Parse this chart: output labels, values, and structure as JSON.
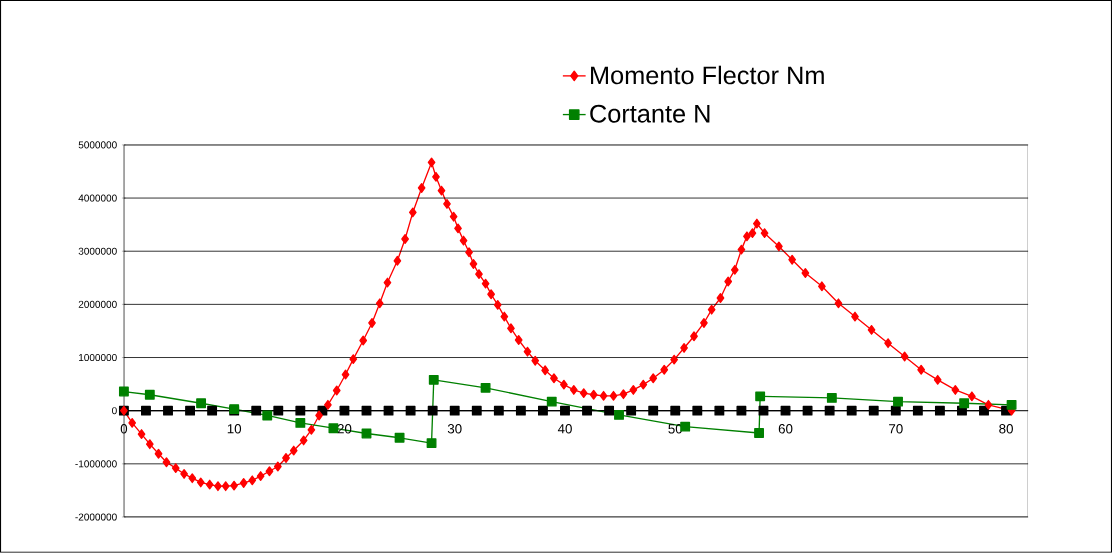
{
  "chart_data": {
    "type": "line",
    "xlim": [
      0,
      82
    ],
    "ylim": [
      -2000000,
      5000000
    ],
    "xticks": [
      0,
      10,
      20,
      30,
      40,
      50,
      60,
      70,
      80
    ],
    "yticks": [
      -2000000,
      -1000000,
      0,
      1000000,
      2000000,
      3000000,
      4000000,
      5000000
    ],
    "grid": "y",
    "legend": "top right",
    "series": [
      {
        "color": "#000000",
        "marker": "square",
        "x": [
          0,
          2,
          4,
          6,
          8,
          10,
          12,
          14,
          16,
          18,
          20,
          22,
          24,
          26,
          28,
          30,
          32,
          34,
          36,
          38,
          40,
          42,
          44,
          46,
          48,
          50,
          52,
          54,
          56,
          58,
          60,
          62,
          64,
          66,
          68,
          70,
          72,
          74,
          76,
          78,
          80
        ],
        "values": [
          0,
          0,
          0,
          0,
          0,
          0,
          0,
          0,
          0,
          0,
          0,
          0,
          0,
          0,
          0,
          0,
          0,
          0,
          0,
          0,
          0,
          0,
          0,
          0,
          0,
          0,
          0,
          0,
          0,
          0,
          0,
          0,
          0,
          0,
          0,
          0,
          0,
          0,
          0,
          0,
          0
        ]
      },
      {
        "name": "Momento Flector Nm",
        "color": "#ff0000",
        "marker": "diamond",
        "x": [
          0,
          0.75,
          1.6,
          2.35,
          3.14,
          3.86,
          4.7,
          5.46,
          6.2,
          6.97,
          7.78,
          8.53,
          9.23,
          9.99,
          10.86,
          11.64,
          12.4,
          13.2,
          13.96,
          14.7,
          15.4,
          16.3,
          17.0,
          17.7,
          18.5,
          19.3,
          20.1,
          20.8,
          21.7,
          22.5,
          23.2,
          23.9,
          24.8,
          25.5,
          26.2,
          27.0,
          27.9,
          28.3,
          28.8,
          29.3,
          29.9,
          30.3,
          30.8,
          31.3,
          31.7,
          32.2,
          32.8,
          33.3,
          33.9,
          34.5,
          35.1,
          35.8,
          36.6,
          37.3,
          38.2,
          39.0,
          39.9,
          40.8,
          41.7,
          42.6,
          43.5,
          44.4,
          45.3,
          46.2,
          47.1,
          48.0,
          49.0,
          49.9,
          50.8,
          51.7,
          52.6,
          53.3,
          54.1,
          54.8,
          55.4,
          56.0,
          56.5,
          57.0,
          57.4,
          58.1,
          59.4,
          60.6,
          61.8,
          63.3,
          64.8,
          66.3,
          67.8,
          69.3,
          70.8,
          72.3,
          73.8,
          75.4,
          76.9,
          78.4,
          80.5
        ],
        "values": [
          0,
          -230000,
          -440000,
          -630000,
          -810000,
          -970000,
          -1080000,
          -1190000,
          -1270000,
          -1350000,
          -1390000,
          -1420000,
          -1420000,
          -1410000,
          -1360000,
          -1310000,
          -1230000,
          -1140000,
          -1050000,
          -890000,
          -750000,
          -560000,
          -360000,
          -90000,
          110000,
          380000,
          680000,
          970000,
          1320000,
          1650000,
          2020000,
          2410000,
          2820000,
          3230000,
          3730000,
          4190000,
          4670000,
          4400000,
          4140000,
          3890000,
          3650000,
          3430000,
          3200000,
          2980000,
          2760000,
          2570000,
          2390000,
          2190000,
          1990000,
          1770000,
          1550000,
          1330000,
          1110000,
          940000,
          760000,
          610000,
          490000,
          390000,
          330000,
          300000,
          280000,
          280000,
          310000,
          390000,
          490000,
          610000,
          770000,
          960000,
          1180000,
          1400000,
          1650000,
          1900000,
          2120000,
          2430000,
          2650000,
          3030000,
          3280000,
          3340000,
          3520000,
          3340000,
          3090000,
          2840000,
          2590000,
          2340000,
          2020000,
          1770000,
          1520000,
          1270000,
          1020000,
          770000,
          580000,
          390000,
          270000,
          110000,
          0
        ]
      },
      {
        "name": "Cortante N",
        "color": "#008000",
        "marker": "square",
        "x": [
          0,
          2.35,
          7.0,
          10.0,
          13.0,
          16.0,
          19.0,
          22.0,
          25.0,
          27.9,
          28.1,
          32.8,
          38.8,
          44.9,
          50.9,
          57.6,
          57.7,
          64.2,
          70.2,
          76.2,
          80.5
        ],
        "values": [
          360000,
          300000,
          140000,
          30000,
          -90000,
          -230000,
          -330000,
          -430000,
          -510000,
          -610000,
          580000,
          430000,
          170000,
          -80000,
          -300000,
          -420000,
          270000,
          240000,
          170000,
          140000,
          110000
        ]
      }
    ]
  }
}
